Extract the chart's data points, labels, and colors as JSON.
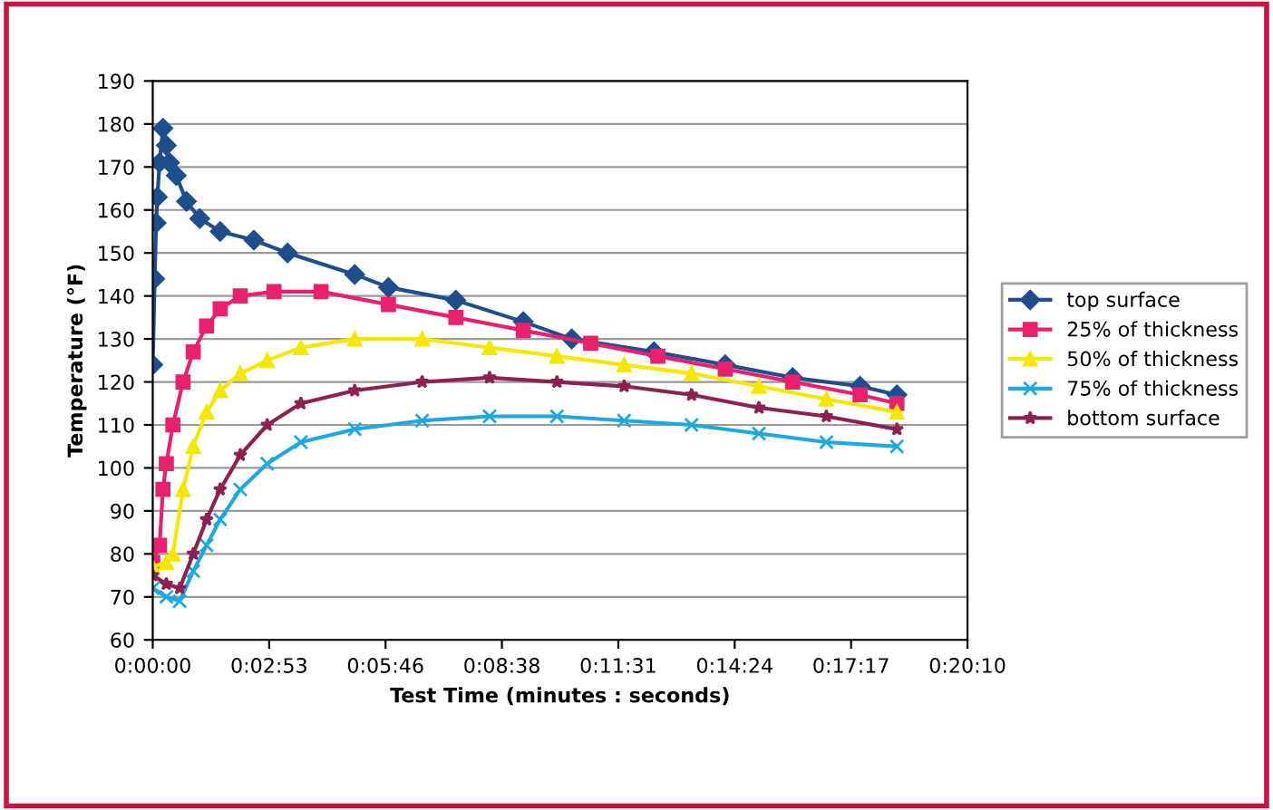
{
  "chart_data": {
    "type": "line",
    "xlabel": "Test Time (minutes : seconds)",
    "ylabel": "Temperature (°F)",
    "xlim": [
      0,
      0.336
    ],
    "xticks": [
      {
        "value": 0,
        "label": "0:00:00"
      },
      {
        "value": 0.048,
        "label": "0:02:53"
      },
      {
        "value": 0.096,
        "label": "0:05:46"
      },
      {
        "value": 0.144,
        "label": "0:08:38"
      },
      {
        "value": 0.192,
        "label": "0:11:31"
      },
      {
        "value": 0.24,
        "label": "0:14:24"
      },
      {
        "value": 0.288,
        "label": "0:17:17"
      },
      {
        "value": 0.336,
        "label": "0:20:10"
      }
    ],
    "ylim": [
      60,
      190
    ],
    "yticks": [
      60,
      70,
      80,
      90,
      100,
      110,
      120,
      130,
      140,
      150,
      160,
      170,
      180,
      190
    ],
    "grid": "y",
    "legend": "right",
    "series": [
      {
        "name": "top surface",
        "color": "#1f4e8c",
        "marker": "diamond",
        "x": [
          0,
          0.0008,
          0.0014,
          0.0019,
          0.0028,
          0.0042,
          0.0056,
          0.0069,
          0.0097,
          0.0139,
          0.0194,
          0.0278,
          0.0417,
          0.0556,
          0.0833,
          0.0972,
          0.125,
          0.1528,
          0.1728,
          0.2067,
          0.2361,
          0.2639,
          0.2917,
          0.3069
        ],
        "values": [
          124,
          144,
          157,
          163,
          171,
          179,
          175,
          171,
          168,
          162,
          158,
          155,
          153,
          150,
          145,
          142,
          139,
          134,
          130,
          127,
          124,
          121,
          119,
          117
        ]
      },
      {
        "name": "25% of thickness",
        "color": "#e8206e",
        "marker": "square",
        "x": [
          0,
          0.0028,
          0.0042,
          0.0056,
          0.0083,
          0.0125,
          0.0167,
          0.0222,
          0.0278,
          0.0361,
          0.05,
          0.0694,
          0.0972,
          0.125,
          0.1528,
          0.1806,
          0.2083,
          0.2361,
          0.2639,
          0.2917,
          0.3069
        ],
        "values": [
          78,
          82,
          95,
          101,
          110,
          120,
          127,
          133,
          137,
          140,
          141,
          141,
          138,
          135,
          132,
          129,
          126,
          123,
          120,
          117,
          115
        ]
      },
      {
        "name": "50% of thickness",
        "color": "#f5e800",
        "marker": "triangle",
        "x": [
          0,
          0.0056,
          0.0083,
          0.0125,
          0.0167,
          0.0222,
          0.0278,
          0.0361,
          0.0472,
          0.0611,
          0.0833,
          0.1111,
          0.1389,
          0.1667,
          0.1944,
          0.2222,
          0.25,
          0.2778,
          0.3069
        ],
        "values": [
          77,
          78,
          80,
          95,
          105,
          113,
          118,
          122,
          125,
          128,
          130,
          130,
          128,
          126,
          124,
          122,
          119,
          116,
          113
        ]
      },
      {
        "name": "75% of thickness",
        "color": "#1ea8e0",
        "marker": "cross",
        "x": [
          0,
          0.0056,
          0.0111,
          0.0167,
          0.0222,
          0.0278,
          0.0361,
          0.0472,
          0.0611,
          0.0833,
          0.1111,
          0.1389,
          0.1667,
          0.1944,
          0.2222,
          0.25,
          0.2778,
          0.3069
        ],
        "values": [
          72,
          70,
          69,
          76,
          82,
          88,
          95,
          101,
          106,
          109,
          111,
          112,
          112,
          111,
          110,
          108,
          106,
          105
        ]
      },
      {
        "name": "bottom surface",
        "color": "#8b2252",
        "marker": "star",
        "x": [
          0,
          0.0056,
          0.0111,
          0.0167,
          0.0222,
          0.0278,
          0.0361,
          0.0472,
          0.0611,
          0.0833,
          0.1111,
          0.1389,
          0.1667,
          0.1944,
          0.2222,
          0.25,
          0.2778,
          0.3069
        ],
        "values": [
          75,
          73,
          72,
          80,
          88,
          95,
          103,
          110,
          115,
          118,
          120,
          121,
          120,
          119,
          117,
          114,
          112,
          109
        ]
      }
    ]
  }
}
